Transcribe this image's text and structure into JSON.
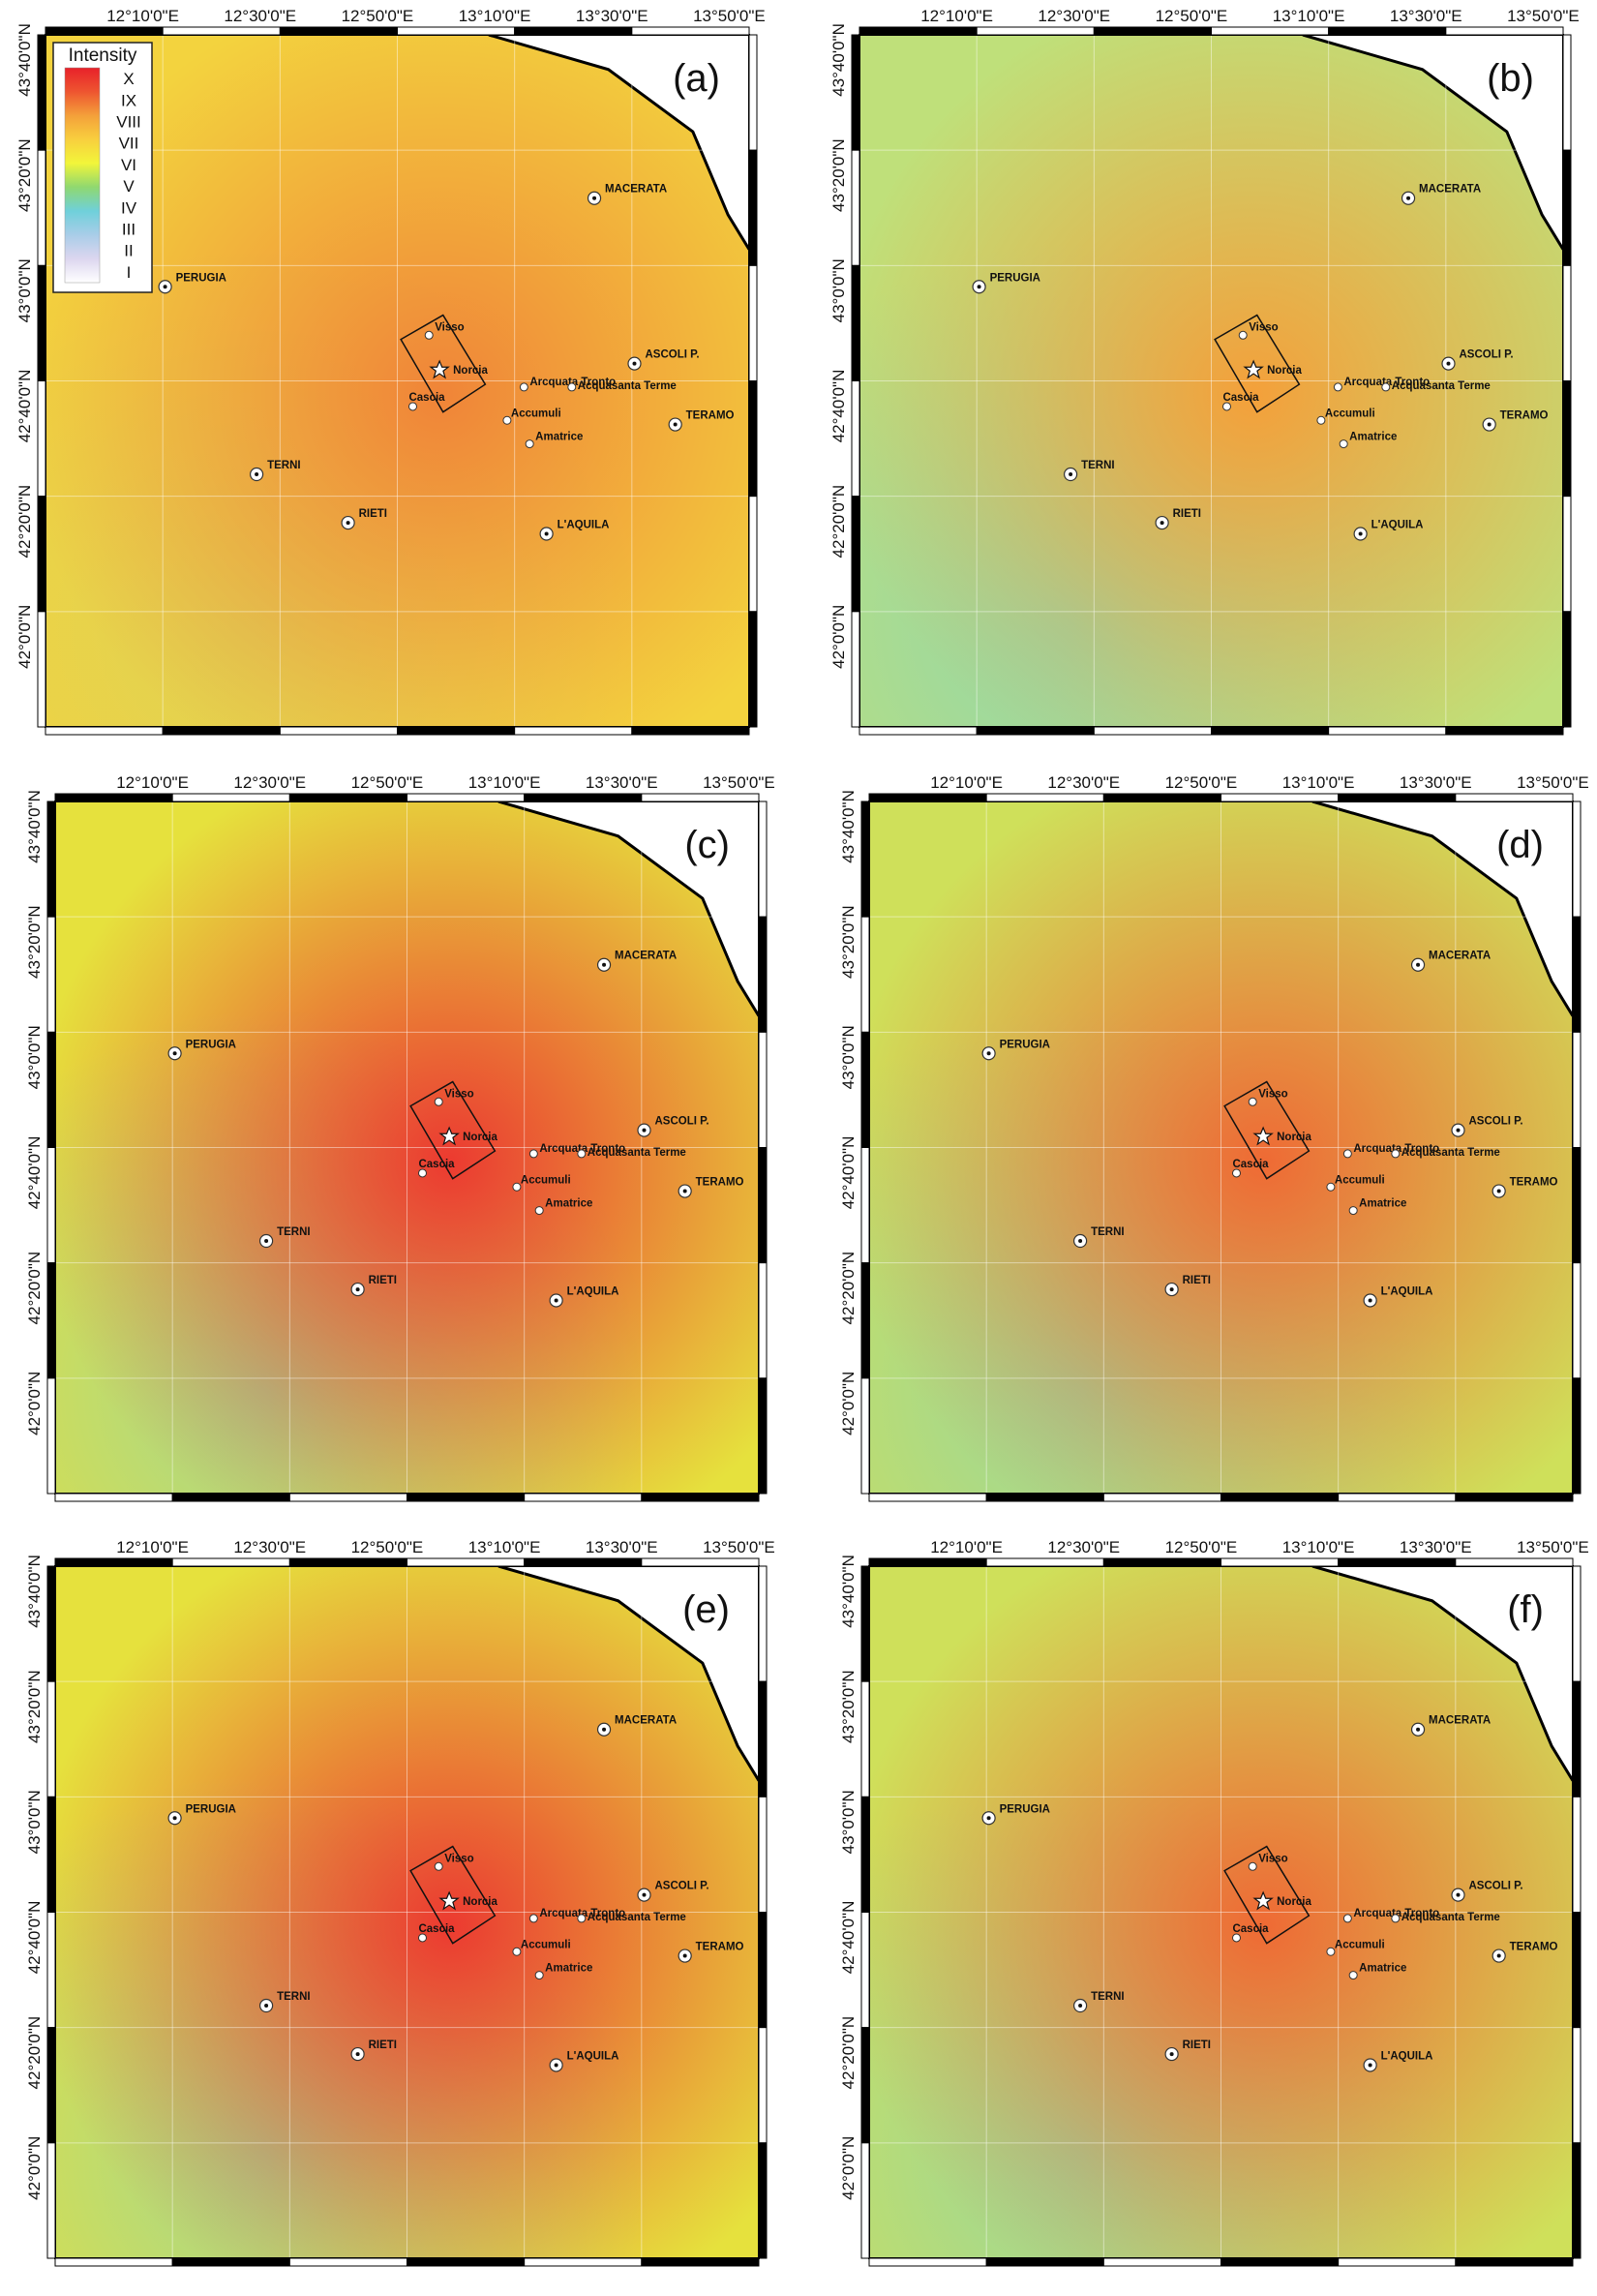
{
  "figure": {
    "longitude_ticks": [
      "12°10'0\"E",
      "12°30'0\"E",
      "12°50'0\"E",
      "13°10'0\"E",
      "13°30'0\"E",
      "13°50'0\"E"
    ],
    "latitude_ticks": [
      "43°40'0\"N",
      "43°20'0\"N",
      "43°0'0\"N",
      "42°40'0\"N",
      "42°20'0\"N",
      "42°0'0\"N"
    ],
    "cities": [
      {
        "name": "MACERATA",
        "style": "large"
      },
      {
        "name": "PERUGIA",
        "style": "large"
      },
      {
        "name": "Visso",
        "style": "small"
      },
      {
        "name": "ASCOLI P.",
        "style": "large"
      },
      {
        "name": "Norcia",
        "style": "epicenter"
      },
      {
        "name": "Arcquata Tronto",
        "style": "small"
      },
      {
        "name": "Acquasanta Terme",
        "style": "small"
      },
      {
        "name": "Cascia",
        "style": "small"
      },
      {
        "name": "Accumuli",
        "style": "small"
      },
      {
        "name": "TERAMO",
        "style": "large"
      },
      {
        "name": "Amatrice",
        "style": "small"
      },
      {
        "name": "TERNI",
        "style": "large"
      },
      {
        "name": "RIETI",
        "style": "large"
      },
      {
        "name": "L'AQUILA",
        "style": "large"
      }
    ]
  },
  "legend": {
    "title": "Intensity",
    "levels": [
      {
        "label": "X",
        "color": "#e8212a"
      },
      {
        "label": "IX",
        "color": "#ee5530"
      },
      {
        "label": "VIII",
        "color": "#f4a03a"
      },
      {
        "label": "VII",
        "color": "#f8cf3e"
      },
      {
        "label": "VI",
        "color": "#f2f53a"
      },
      {
        "label": "V",
        "color": "#8fd870"
      },
      {
        "label": "IV",
        "color": "#6fd0da"
      },
      {
        "label": "III",
        "color": "#a9cde8"
      },
      {
        "label": "II",
        "color": "#dcd6ef"
      },
      {
        "label": "I",
        "color": "#ffffff"
      }
    ]
  },
  "panels": [
    {
      "label": "(a)",
      "base_color": "#f3d33e",
      "epicenter_color": "#f08438",
      "peak_intensity": "IX"
    },
    {
      "label": "(b)",
      "base_color": "#bfe07a",
      "epicenter_color": "#f4a03a",
      "peak_intensity": "VIII"
    },
    {
      "label": "(c)",
      "base_color": "#e6e13d",
      "epicenter_color": "#ec3a30",
      "peak_intensity": "X"
    },
    {
      "label": "(d)",
      "base_color": "#cfe05a",
      "epicenter_color": "#ef6a34",
      "peak_intensity": "IX"
    },
    {
      "label": "(e)",
      "base_color": "#e6e13d",
      "epicenter_color": "#ec3a30",
      "peak_intensity": "X"
    },
    {
      "label": "(f)",
      "base_color": "#cfe05a",
      "epicenter_color": "#ef6a34",
      "peak_intensity": "IX"
    }
  ]
}
